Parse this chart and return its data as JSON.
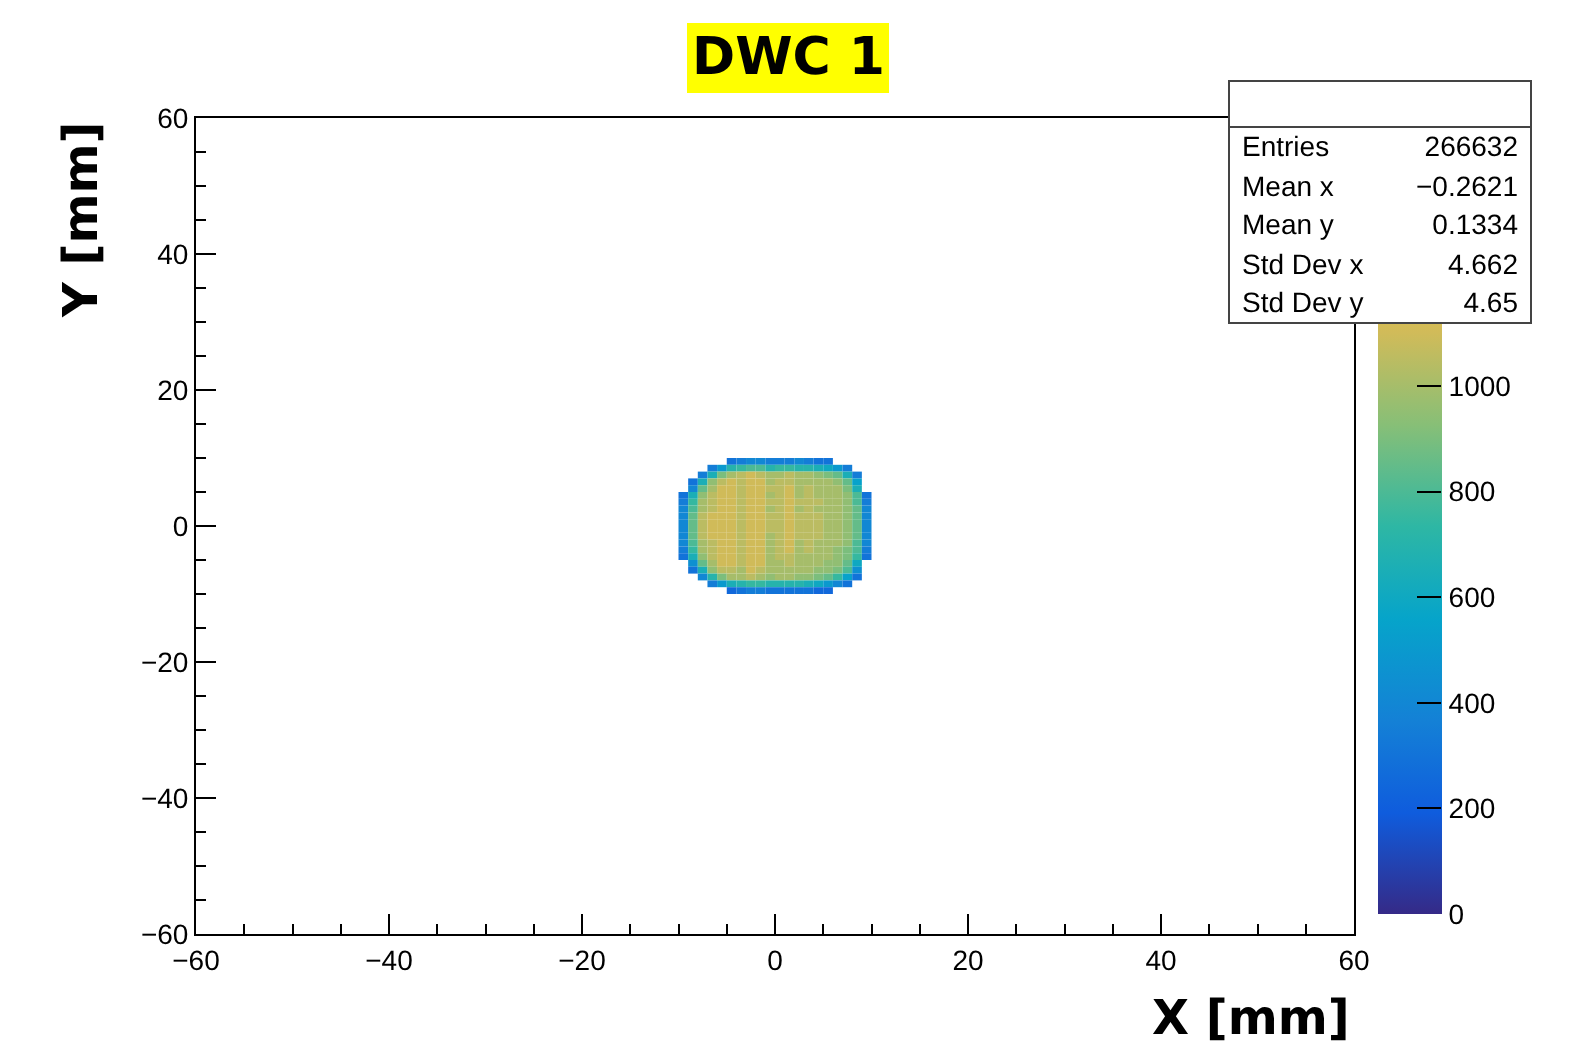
{
  "chart_data": {
    "type": "heatmap",
    "title": "DWC 1",
    "xlabel": "X [mm]",
    "ylabel": "Y [mm]",
    "x": [
      -9.5,
      -8.5,
      -7.5,
      -6.5,
      -5.5,
      -4.5,
      -3.5,
      -2.5,
      -1.5,
      -0.5,
      0.5,
      1.5,
      2.5,
      3.5,
      4.5,
      5.5,
      6.5,
      7.5,
      8.5,
      9.5
    ],
    "y": [
      9.5,
      8.5,
      7.5,
      6.5,
      5.5,
      4.5,
      3.5,
      2.5,
      1.5,
      0.5,
      -0.5,
      -1.5,
      -2.5,
      -3.5,
      -4.5,
      -5.5,
      -6.5,
      -7.5,
      -8.5,
      -9.5
    ],
    "cells": [
      [
        null,
        null,
        null,
        null,
        null,
        300,
        350,
        400,
        400,
        350,
        350,
        350,
        400,
        350,
        300,
        300,
        null,
        null,
        null,
        null
      ],
      [
        null,
        null,
        null,
        350,
        500,
        700,
        750,
        800,
        800,
        700,
        750,
        750,
        700,
        700,
        650,
        600,
        500,
        350,
        null,
        null
      ],
      [
        null,
        null,
        350,
        650,
        900,
        1000,
        1050,
        1100,
        1050,
        1000,
        1000,
        1050,
        1000,
        1000,
        950,
        900,
        850,
        650,
        350,
        null
      ],
      [
        null,
        300,
        650,
        950,
        1050,
        1100,
        1050,
        1100,
        1100,
        1000,
        1050,
        1050,
        1000,
        1000,
        1000,
        1000,
        950,
        850,
        550,
        null
      ],
      [
        null,
        400,
        850,
        1000,
        1100,
        1100,
        1050,
        1100,
        1100,
        1050,
        1050,
        1100,
        1000,
        1050,
        1000,
        1000,
        1000,
        900,
        650,
        null
      ],
      [
        300,
        650,
        950,
        1050,
        1100,
        1100,
        1050,
        1100,
        1100,
        1000,
        1050,
        1100,
        1000,
        1050,
        1000,
        1000,
        1000,
        950,
        800,
        300
      ],
      [
        350,
        750,
        1000,
        1050,
        1100,
        1100,
        1050,
        1100,
        1100,
        1050,
        1050,
        1100,
        1050,
        1050,
        1050,
        1000,
        1000,
        950,
        800,
        350
      ],
      [
        400,
        800,
        1000,
        1050,
        1100,
        1100,
        1050,
        1100,
        1100,
        1000,
        1050,
        1100,
        1000,
        1050,
        1000,
        1000,
        1000,
        950,
        850,
        400
      ],
      [
        400,
        850,
        1050,
        1100,
        1100,
        1100,
        1050,
        1100,
        1100,
        1050,
        1050,
        1100,
        1050,
        1050,
        1050,
        1000,
        1000,
        950,
        850,
        400
      ],
      [
        400,
        850,
        1050,
        1100,
        1100,
        1100,
        1050,
        1100,
        1100,
        1050,
        1050,
        1100,
        1050,
        1050,
        1050,
        1000,
        1000,
        950,
        850,
        400
      ],
      [
        400,
        850,
        1050,
        1100,
        1100,
        1100,
        1050,
        1100,
        1100,
        1050,
        1050,
        1100,
        1050,
        1050,
        1050,
        1000,
        1000,
        950,
        850,
        400
      ],
      [
        400,
        850,
        1050,
        1100,
        1100,
        1100,
        1050,
        1100,
        1100,
        1000,
        1050,
        1100,
        1050,
        1050,
        1050,
        1000,
        1000,
        950,
        850,
        400
      ],
      [
        400,
        800,
        1000,
        1050,
        1100,
        1100,
        1050,
        1100,
        1100,
        1000,
        1050,
        1100,
        1000,
        1050,
        1000,
        1000,
        1000,
        950,
        800,
        400
      ],
      [
        350,
        750,
        1000,
        1050,
        1100,
        1100,
        1050,
        1100,
        1100,
        1000,
        1050,
        1100,
        1000,
        1050,
        1000,
        1000,
        950,
        900,
        800,
        350
      ],
      [
        300,
        650,
        950,
        1050,
        1100,
        1100,
        1050,
        1100,
        1100,
        1000,
        1050,
        1050,
        1000,
        1000,
        1000,
        1000,
        950,
        900,
        750,
        300
      ],
      [
        null,
        450,
        850,
        1000,
        1100,
        1100,
        1050,
        1100,
        1100,
        1000,
        1000,
        1050,
        1000,
        1000,
        1000,
        950,
        950,
        850,
        600,
        null
      ],
      [
        null,
        300,
        650,
        950,
        1050,
        1050,
        1000,
        1100,
        1050,
        1000,
        1000,
        1000,
        1000,
        1000,
        950,
        950,
        900,
        800,
        450,
        null
      ],
      [
        null,
        null,
        400,
        700,
        900,
        1000,
        1000,
        1050,
        1000,
        950,
        1000,
        1000,
        950,
        950,
        900,
        850,
        750,
        550,
        300,
        null
      ],
      [
        null,
        null,
        null,
        350,
        500,
        650,
        700,
        750,
        750,
        700,
        700,
        700,
        700,
        650,
        600,
        500,
        400,
        300,
        null,
        null
      ],
      [
        null,
        null,
        null,
        null,
        null,
        250,
        300,
        350,
        350,
        300,
        300,
        300,
        300,
        300,
        250,
        250,
        null,
        null,
        null,
        null
      ]
    ],
    "xlim": [
      -60,
      60
    ],
    "xticks": [
      -60,
      -40,
      -20,
      0,
      20,
      40,
      60
    ],
    "ylim": [
      -60,
      60
    ],
    "yticks": [
      -60,
      -40,
      -20,
      0,
      20,
      40,
      60
    ],
    "clim": [
      0,
      1470
    ],
    "cticks": [
      0,
      200,
      400,
      600,
      800,
      1000
    ],
    "grid": false,
    "annotations": [
      "Entries 266632",
      "Mean x −0.2621",
      "Mean y 0.1334",
      "Std Dev x 4.662",
      "Std Dev y 4.65"
    ]
  }
}
